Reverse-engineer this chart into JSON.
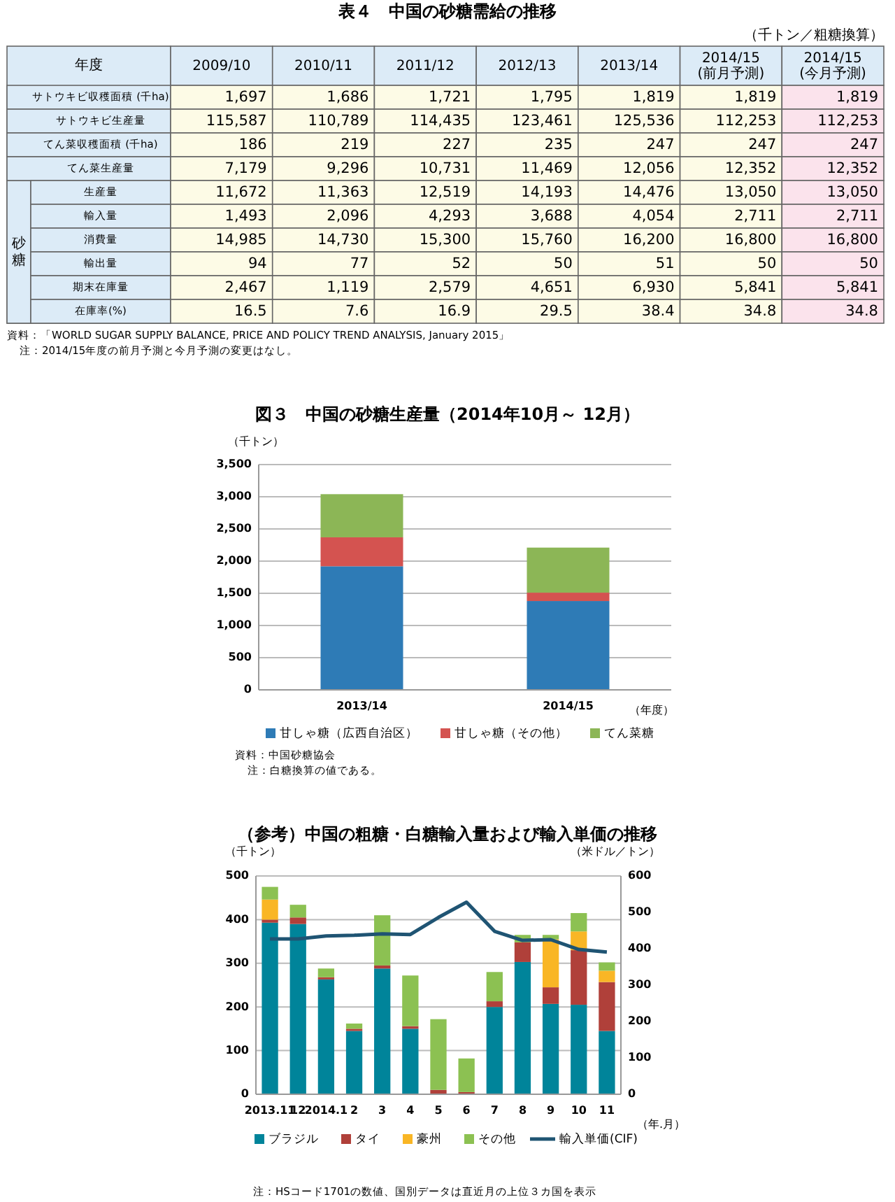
{
  "chart_data": [
    {
      "type": "heatmap",
      "title": "表４　中国の砂糖需給の推移",
      "subtitle": "（千トン／粗糖換算）",
      "xlabel": "年度",
      "ylabel": "砂糖",
      "categories": [
        "2009/10",
        "2010/11",
        "2011/12",
        "2012/13",
        "2013/14",
        "2014/15 (前月予測)",
        "2014/15 (今月予測)"
      ],
      "y_categories": [
        "サトウキビ収穫面積 (千ha)",
        "サトウキビ生産量",
        "てん菜収穫面積 (千ha)",
        "てん菜生産量",
        "生産量",
        "輸入量",
        "消費量",
        "輸出量",
        "期末在庫量",
        "在庫率(%)"
      ],
      "colors": [
        "#fdfbe6",
        "#fdfbe6",
        "#fdfbe6",
        "#fdfbe6",
        "#fdfbe6",
        "#fdfbe6",
        "#fbe3ec"
      ],
      "cells": [
        [
          1697,
          1686,
          1721,
          1795,
          1819,
          1819,
          1819
        ],
        [
          115587,
          110789,
          114435,
          123461,
          125536,
          112253,
          112253
        ],
        [
          186,
          219,
          227,
          235,
          247,
          247,
          247
        ],
        [
          7179,
          9296,
          10731,
          11469,
          12056,
          12352,
          12352
        ],
        [
          11672,
          11363,
          12519,
          14193,
          14476,
          13050,
          13050
        ],
        [
          1493,
          2096,
          4293,
          3688,
          4054,
          2711,
          2711
        ],
        [
          14985,
          14730,
          15300,
          15760,
          16200,
          16800,
          16800
        ],
        [
          94,
          77,
          52,
          50,
          51,
          50,
          50
        ],
        [
          2467,
          1119,
          2579,
          4651,
          6930,
          5841,
          5841
        ],
        [
          16.5,
          7.6,
          16.9,
          29.5,
          38.4,
          34.8,
          34.8
        ]
      ],
      "cell_labels": [
        [
          "1,697",
          "1,686",
          "1,721",
          "1,795",
          "1,819",
          "1,819",
          "1,819"
        ],
        [
          "115,587",
          "110,789",
          "114,435",
          "123,461",
          "125,536",
          "112,253",
          "112,253"
        ],
        [
          "186",
          "219",
          "227",
          "235",
          "247",
          "247",
          "247"
        ],
        [
          "7,179",
          "9,296",
          "10,731",
          "11,469",
          "12,056",
          "12,352",
          "12,352"
        ],
        [
          "11,672",
          "11,363",
          "12,519",
          "14,193",
          "14,476",
          "13,050",
          "13,050"
        ],
        [
          "1,493",
          "2,096",
          "4,293",
          "3,688",
          "4,054",
          "2,711",
          "2,711"
        ],
        [
          "14,985",
          "14,730",
          "15,300",
          "15,760",
          "16,200",
          "16,800",
          "16,800"
        ],
        [
          "94",
          "77",
          "52",
          "50",
          "51",
          "50",
          "50"
        ],
        [
          "2,467",
          "1,119",
          "2,579",
          "4,651",
          "6,930",
          "5,841",
          "5,841"
        ],
        [
          "16.5",
          "7.6",
          "16.9",
          "29.5",
          "38.4",
          "34.8",
          "34.8"
        ]
      ],
      "annotations": [
        "資料：「WORLD SUGAR SUPPLY BALANCE, PRICE AND POLICY TREND ANALYSIS, January 2015」",
        "注：2014/15年度の前月予測と今月予測の変更はなし。"
      ]
    },
    {
      "type": "bar",
      "stacked": true,
      "title": "図３　中国の砂糖生産量（2014年10月～ 12月）",
      "ylabel": "（千トン）",
      "xlabel": "（年度）",
      "categories": [
        "2013/14",
        "2014/15"
      ],
      "series": [
        {
          "name": "甘しゃ糖（広西自治区）",
          "color": "#2e7bb6",
          "values": [
            1920,
            1380
          ]
        },
        {
          "name": "甘しゃ糖（その他）",
          "color": "#d45350",
          "values": [
            450,
            130
          ]
        },
        {
          "name": "てん菜糖",
          "color": "#8cb656",
          "values": [
            670,
            700
          ]
        }
      ],
      "ylim": [
        0,
        3500
      ],
      "yticks": [
        0,
        500,
        {
          "value": 1000,
          "label": "1,000"
        },
        {
          "value": 1500,
          "label": "1,500"
        },
        {
          "value": 2000,
          "label": "2,000"
        },
        {
          "value": 2500,
          "label": "2,500"
        },
        {
          "value": 3000,
          "label": "3,000"
        },
        {
          "value": 3500,
          "label": "3,500"
        }
      ],
      "grid": "y",
      "legend": "bottom",
      "annotations": [
        "資料：中国砂糖協会",
        "注：白糖換算の値である。"
      ]
    },
    {
      "type": "bar",
      "stacked": true,
      "title": "（参考）中国の粗糖・白糖輸入量および輸入単価の推移",
      "ylabel": "（千トン）",
      "y2label": "（米ドル／トン）",
      "xlabel": "（年.月）",
      "categories": [
        "2013.11",
        "12",
        "2014.1",
        "2",
        "3",
        "4",
        "5",
        "6",
        "7",
        "8",
        "9",
        "10",
        "11"
      ],
      "series": [
        {
          "name": "ブラジル",
          "color": "#00849a",
          "values": [
            393,
            390,
            263,
            145,
            288,
            150,
            0,
            0,
            200,
            303,
            207,
            205,
            145
          ]
        },
        {
          "name": "タイ",
          "color": "#b0403a",
          "values": [
            7,
            15,
            5,
            5,
            7,
            6,
            10,
            5,
            13,
            45,
            38,
            125,
            112
          ]
        },
        {
          "name": "豪州",
          "color": "#f9b625",
          "values": [
            46,
            0,
            0,
            0,
            0,
            0,
            0,
            0,
            0,
            0,
            110,
            43,
            26
          ]
        },
        {
          "name": "その他",
          "color": "#8cc152",
          "values": [
            29,
            29,
            20,
            12,
            115,
            116,
            162,
            77,
            67,
            17,
            10,
            42,
            19
          ]
        },
        {
          "name": "輸入単価(CIF)",
          "type": "line",
          "axis": "y2",
          "color": "#1f5473",
          "marker": "none",
          "values": [
            427,
            427,
            435,
            437,
            441,
            439,
            486,
            528,
            448,
            423,
            425,
            398,
            391
          ]
        }
      ],
      "ylim": [
        0,
        500
      ],
      "yticks": [
        0,
        100,
        200,
        300,
        400,
        500
      ],
      "y2lim": [
        0,
        600
      ],
      "y2ticks": [
        0,
        100,
        200,
        300,
        400,
        500,
        600
      ],
      "grid": "y",
      "legend": "bottom",
      "annotations": [
        "注：HSコード1701の数値、国別データは直近月の上位３カ国を表示"
      ]
    }
  ]
}
